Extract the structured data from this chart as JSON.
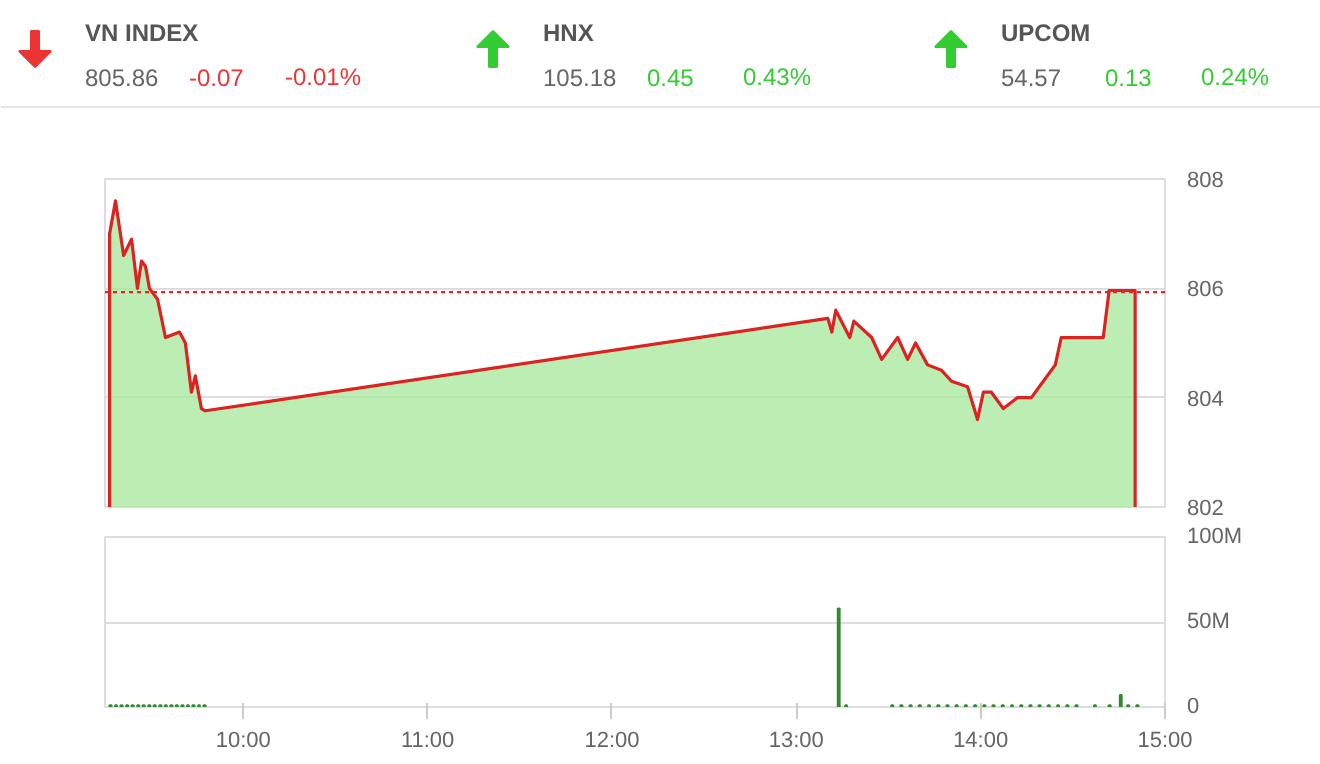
{
  "chart_data": [
    {
      "type": "other",
      "categories": [
        "VN INDEX",
        "HNX",
        "UPCOM"
      ],
      "series": [
        {
          "values": [
            805.86,
            105.18,
            54.57
          ],
          "value_labels": [
            "805.86",
            "105.18",
            "54.57"
          ]
        },
        {
          "values": [
            -0.07,
            0.45,
            0.13
          ],
          "value_labels": [
            "-0.07",
            "0.45",
            "0.13"
          ],
          "colors": [
            "#ee3333",
            "#33cc33",
            "#33cc33"
          ]
        },
        {
          "values": [
            -0.01,
            0.43,
            0.24
          ],
          "value_labels": [
            "-0.01%",
            "0.43%",
            "0.24%"
          ],
          "colors": [
            "#ee3333",
            "#33cc33",
            "#33cc33"
          ]
        }
      ]
    },
    {
      "type": "area",
      "x": [
        9.275,
        9.307,
        9.351,
        9.394,
        9.426,
        9.448,
        9.47,
        9.491,
        9.535,
        9.578,
        9.654,
        9.686,
        9.719,
        9.74,
        9.773,
        9.794,
        13.171,
        13.193,
        13.214,
        13.29,
        13.312,
        13.409,
        13.463,
        13.55,
        13.604,
        13.647,
        13.712,
        13.788,
        13.842,
        13.929,
        13.983,
        14.015,
        14.058,
        14.123,
        14.199,
        14.275,
        14.34,
        14.405,
        14.437,
        14.665,
        14.697,
        14.838
      ],
      "series": [
        {
          "color": "#dd2222",
          "values": [
            807.0,
            807.6,
            806.6,
            806.9,
            806.0,
            806.5,
            806.4,
            806.0,
            805.8,
            805.1,
            805.2,
            805.0,
            804.1,
            804.4,
            803.8,
            803.76,
            805.45,
            805.2,
            805.6,
            805.1,
            805.4,
            805.1,
            804.7,
            805.1,
            804.7,
            805.0,
            804.6,
            804.5,
            804.3,
            804.2,
            803.6,
            804.1,
            804.1,
            803.8,
            804.0,
            804.0,
            804.3,
            804.6,
            805.1,
            805.1,
            805.96,
            805.96
          ]
        }
      ],
      "xlim": [
        9.25,
        15.0
      ],
      "ylim": [
        802,
        808
      ],
      "yticks": [
        802,
        804,
        806,
        808
      ],
      "tick_labels": "y",
      "grid": "y",
      "ref_lines": [
        {
          "axis": "y",
          "value": 805.93,
          "color": "#ee2222",
          "line_style": "dotted"
        }
      ]
    },
    {
      "type": "bar",
      "x": [
        9.28,
        9.31,
        9.34,
        9.37,
        9.4,
        9.43,
        9.46,
        9.49,
        9.52,
        9.55,
        9.58,
        9.61,
        9.64,
        9.67,
        9.7,
        9.73,
        9.76,
        9.79,
        13.23,
        13.27,
        13.52,
        13.57,
        13.62,
        13.67,
        13.72,
        13.77,
        13.82,
        13.87,
        13.92,
        13.97,
        14.02,
        14.07,
        14.12,
        14.17,
        14.22,
        14.27,
        14.32,
        14.37,
        14.42,
        14.47,
        14.52,
        14.62,
        14.7,
        14.76,
        14.8,
        14.85
      ],
      "series": [
        {
          "color": "#2e8b2e",
          "values": [
            1,
            1,
            1,
            1,
            1,
            1,
            1,
            1,
            1,
            1,
            1,
            1,
            1,
            1,
            1,
            1,
            1,
            1,
            58,
            1,
            1,
            1,
            1,
            1,
            1,
            1,
            1,
            1,
            1,
            1,
            1,
            1,
            1,
            1,
            1,
            1,
            1,
            1,
            1,
            1,
            1,
            1,
            1,
            7,
            1,
            1
          ]
        }
      ],
      "xlim": [
        9.25,
        15.0
      ],
      "xticks": [
        {
          "value": 10,
          "label": "10:00"
        },
        {
          "value": 11,
          "label": "11:00"
        },
        {
          "value": 12,
          "label": "12:00"
        },
        {
          "value": 13,
          "label": "13:00"
        },
        {
          "value": 14,
          "label": "14:00"
        },
        {
          "value": 15,
          "label": "15:00"
        }
      ],
      "ylim": [
        0,
        100
      ],
      "yticks": [
        0,
        {
          "value": 50,
          "label": "50M"
        },
        {
          "value": 100,
          "label": "100M"
        }
      ],
      "grid": "y"
    }
  ]
}
